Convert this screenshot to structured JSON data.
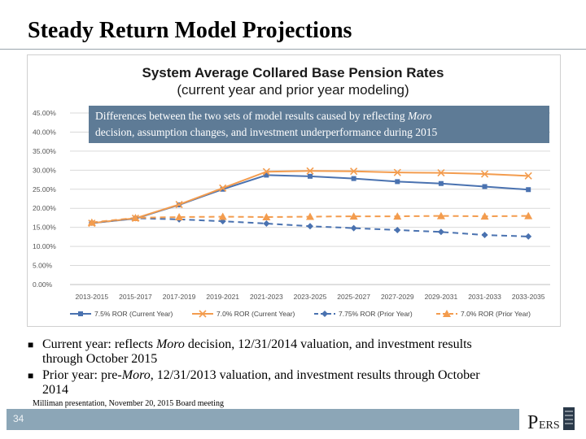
{
  "slide": {
    "title": "Steady Return Model Projections",
    "callout_line1_pre": "Differences between the two sets of model results caused by reflecting ",
    "callout_line1_italic": "Moro",
    "callout_line2": "decision, assumption changes, and investment underperformance during 2015",
    "bullets": [
      {
        "pre": "Current year: reflects ",
        "italic": "Moro",
        "post": " decision, 12/31/2014 valuation, and investment results",
        "line2": "through October 2015"
      },
      {
        "pre": "Prior year: pre-",
        "italic": "Moro",
        "post": ", 12/31/2013 valuation, and investment results through October",
        "line2": "2014"
      }
    ],
    "source": "Milliman presentation, November 20, 2015 Board meeting",
    "page_number": "34",
    "logo_text": "PERS"
  },
  "colors": {
    "blue": "#4a72b0",
    "orange": "#f39c4e",
    "callout_bg": "#5e7b96",
    "footer_bar": "#8ca6b7"
  },
  "chart_data": {
    "type": "line",
    "title": "System Average Collared Base Pension Rates",
    "subtitle": "(current year and prior year modeling)",
    "categories": [
      "2013-2015",
      "2015-2017",
      "2017-2019",
      "2019-2021",
      "2021-2023",
      "2023-2025",
      "2025-2027",
      "2027-2029",
      "2029-2031",
      "2031-2033",
      "2033-2035"
    ],
    "yticks": [
      "0.00%",
      "5.00%",
      "10.00%",
      "15.00%",
      "20.00%",
      "25.00%",
      "30.00%",
      "35.00%",
      "40.00%",
      "45.00%"
    ],
    "ylim": [
      0,
      45
    ],
    "grid": true,
    "legend_position": "bottom",
    "series": [
      {
        "name": "7.5% ROR (Current Year)",
        "color": "#4a72b0",
        "dash": "solid",
        "marker": "square",
        "values": [
          16.1,
          17.3,
          20.9,
          25.0,
          28.7,
          28.4,
          27.8,
          27.0,
          26.5,
          25.7,
          24.9
        ]
      },
      {
        "name": "7.0% ROR (Current Year)",
        "color": "#f39c4e",
        "dash": "solid",
        "marker": "x",
        "values": [
          16.1,
          17.4,
          21.0,
          25.3,
          29.6,
          29.8,
          29.7,
          29.4,
          29.3,
          29.0,
          28.5
        ]
      },
      {
        "name": "7.75% ROR (Prior Year)",
        "color": "#4a72b0",
        "dash": "dashed",
        "marker": "diamond",
        "values": [
          16.2,
          17.4,
          17.1,
          16.6,
          16.0,
          15.3,
          14.8,
          14.3,
          13.8,
          13.0,
          12.6
        ]
      },
      {
        "name": "7.0% ROR (Prior Year)",
        "color": "#f39c4e",
        "dash": "dashed",
        "marker": "triangle",
        "values": [
          16.3,
          17.5,
          17.7,
          17.8,
          17.7,
          17.8,
          17.9,
          17.9,
          18.0,
          17.9,
          18.0
        ]
      }
    ]
  }
}
